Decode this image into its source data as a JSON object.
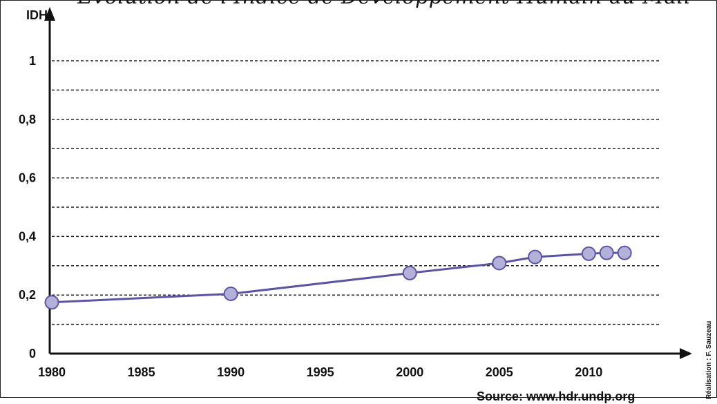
{
  "chart_data": {
    "type": "line",
    "title": "Evolution de l'Indice de Développement Humain au Mali",
    "ylabel": "IDH",
    "xlabel": "",
    "xlim": [
      1980,
      2014
    ],
    "ylim": [
      0,
      1
    ],
    "x_ticks": [
      "1980",
      "1985",
      "1990",
      "1995",
      "2000",
      "2005",
      "2010"
    ],
    "y_ticks": [
      "0",
      "0,2",
      "0,4",
      "0,6",
      "0,8",
      "1"
    ],
    "grid": true,
    "x": [
      1980,
      1990,
      2000,
      2005,
      2007,
      2010,
      2011,
      2012
    ],
    "values": [
      0.175,
      0.204,
      0.275,
      0.309,
      0.33,
      0.341,
      0.344,
      0.344
    ],
    "colors": {
      "line": "#5b55a1",
      "marker_fill": "#b3b0da",
      "marker_stroke": "#5b55a1"
    }
  },
  "source_text": "Source: www.hdr.undp.org",
  "credit_text": "Réalisation : F. Sauzeau"
}
